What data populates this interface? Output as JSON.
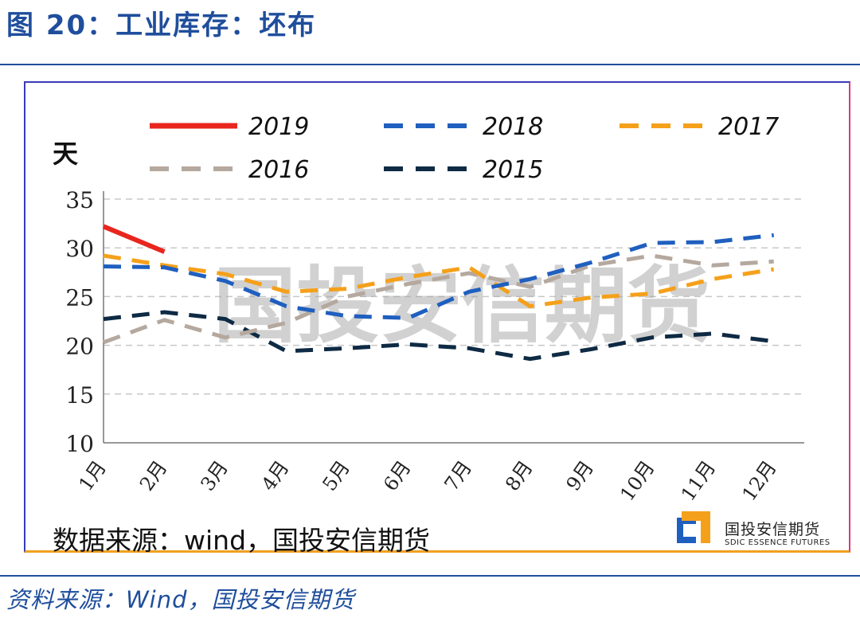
{
  "figure": {
    "title": "图 20：工业库存：坯布",
    "source_outer": "资料来源：Wind，国投安信期货"
  },
  "chart_data": {
    "type": "line",
    "title": "",
    "ylabel": "天",
    "xlabel": "",
    "ylim": [
      10,
      35
    ],
    "yticks": [
      10,
      15,
      20,
      25,
      30,
      35
    ],
    "grid": true,
    "legend_position": "top",
    "categories": [
      "1月",
      "2月",
      "3月",
      "4月",
      "5月",
      "6月",
      "7月",
      "8月",
      "9月",
      "10月",
      "11月",
      "12月"
    ],
    "series": [
      {
        "name": "2019",
        "color": "#e8261e",
        "style": "solid",
        "values": [
          32.2,
          29.6,
          null,
          null,
          null,
          null,
          null,
          null,
          null,
          null,
          null,
          null
        ]
      },
      {
        "name": "2018",
        "color": "#1f5fbf",
        "style": "dashed",
        "values": [
          28.1,
          28.0,
          26.6,
          24.0,
          23.0,
          22.8,
          25.5,
          26.8,
          28.5,
          30.5,
          30.6,
          31.3
        ]
      },
      {
        "name": "2017",
        "color": "#f5a01a",
        "style": "dashed",
        "values": [
          29.2,
          28.2,
          27.3,
          25.5,
          25.8,
          27.0,
          28.0,
          24.0,
          24.9,
          25.3,
          26.8,
          27.8
        ]
      },
      {
        "name": "2016",
        "color": "#b5a89e",
        "style": "dashed",
        "values": [
          20.3,
          22.6,
          20.8,
          22.3,
          25.0,
          26.3,
          27.4,
          26.0,
          28.2,
          29.2,
          28.2,
          28.6
        ]
      },
      {
        "name": "2015",
        "color": "#0e2a44",
        "style": "dashed",
        "values": [
          22.7,
          23.4,
          22.7,
          19.4,
          19.7,
          20.1,
          19.7,
          18.6,
          19.6,
          20.8,
          21.2,
          20.4
        ]
      }
    ],
    "watermark": "国投安信期货",
    "source_inner": "数据来源：wind，国投安信期货"
  },
  "logo": {
    "name_cn": "国投安信期货",
    "name_en": "SDIC ESSENCE FUTURES",
    "colors": [
      "#1f5fbf",
      "#f5a01a"
    ]
  }
}
